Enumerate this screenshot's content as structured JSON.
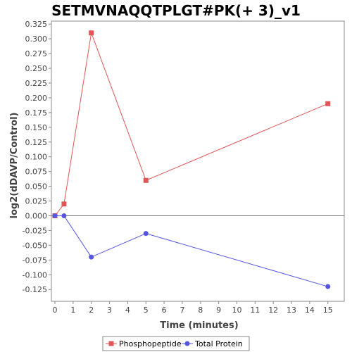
{
  "chart_data": {
    "type": "line",
    "title": "SETMVNAQQTPLGT#PK(+ 3)_v1",
    "xlabel": "Time (minutes)",
    "ylabel": "log2(dDAVP/Control)",
    "xlim": [
      0,
      15.9
    ],
    "ylim": [
      -0.145,
      0.33
    ],
    "xticks": [
      0,
      1,
      2,
      3,
      4,
      5,
      6,
      7,
      8,
      9,
      10,
      11,
      12,
      13,
      14,
      15
    ],
    "yticks": [
      -0.125,
      -0.1,
      -0.075,
      -0.05,
      -0.025,
      0.0,
      0.025,
      0.05,
      0.075,
      0.1,
      0.125,
      0.15,
      0.175,
      0.2,
      0.225,
      0.25,
      0.275,
      0.3,
      0.325
    ],
    "ytick_labels": [
      "-0.125",
      "-0.100",
      "-0.075",
      "-0.050",
      "-0.025",
      "0.000",
      "0.025",
      "0.050",
      "0.075",
      "0.100",
      "0.125",
      "0.150",
      "0.175",
      "0.200",
      "0.225",
      "0.250",
      "0.275",
      "0.300",
      "0.325"
    ],
    "zero_line": true,
    "grid": false,
    "legend_position": "bottom",
    "series": [
      {
        "name": "Phosphopeptide",
        "color": "#e05555",
        "marker": "square",
        "x": [
          0,
          0.5,
          2,
          5,
          15
        ],
        "y": [
          0.0,
          0.02,
          0.31,
          0.06,
          0.19
        ]
      },
      {
        "name": "Total Protein",
        "color": "#5555e0",
        "marker": "circle",
        "x": [
          0,
          0.5,
          2,
          5,
          15
        ],
        "y": [
          0.0,
          0.0,
          -0.07,
          -0.03,
          -0.12
        ]
      }
    ]
  }
}
